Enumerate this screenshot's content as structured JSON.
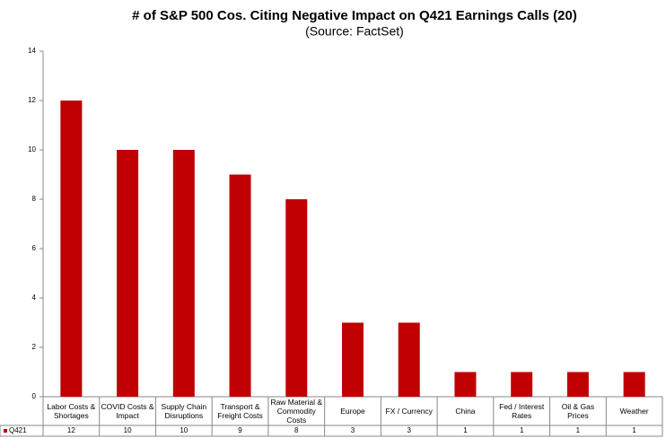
{
  "chart_data": {
    "type": "bar",
    "title": "# of S&P 500 Cos. Citing Negative Impact on Q421 Earnings Calls (20)",
    "subtitle": "(Source: FactSet)",
    "categories": [
      "Labor Costs & Shortages",
      "COVID Costs & Impact",
      "Supply Chain Disruptions",
      "Transport & Freight Costs",
      "Raw Material & Commodity Costs",
      "Europe",
      "FX / Currency",
      "China",
      "Fed / Interest Rates",
      "Oil & Gas Prices",
      "Weather"
    ],
    "series": [
      {
        "name": "Q421",
        "color": "#c00000",
        "values": [
          12,
          10,
          10,
          9,
          8,
          3,
          3,
          1,
          1,
          1,
          1
        ]
      }
    ],
    "ylim": [
      0,
      14
    ],
    "yticks": [
      0,
      2,
      4,
      6,
      8,
      10,
      12,
      14
    ],
    "grid": false
  }
}
